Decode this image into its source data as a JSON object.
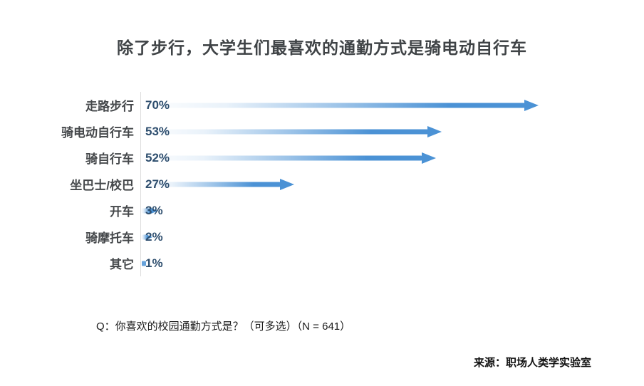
{
  "title": "除了步行，大学生们最喜欢的通勤方式是骑电动自行车",
  "question": "Q：你喜欢的校园通勤方式是？（可多选）（N = 641）",
  "source": "来源：职场人类学实验室",
  "colors": {
    "arrow_blue": "#4b92d5",
    "value_text": "#2e4e6e",
    "category_text": "#45484b",
    "axis_line": "#dcdcdc",
    "title_text": "#3f4346"
  },
  "chart_data": {
    "type": "bar",
    "orientation": "horizontal",
    "title": "除了步行，大学生们最喜欢的通勤方式是骑电动自行车",
    "categories": [
      "走路步行",
      "骑电动自行车",
      "骑自行车",
      "坐巴士/校巴",
      "开车",
      "骑摩托车",
      "其它"
    ],
    "values": [
      70,
      53,
      52,
      27,
      3,
      2,
      1
    ],
    "value_labels": [
      "70%",
      "53%",
      "52%",
      "27%",
      "3%",
      "2%",
      "1%"
    ],
    "unit": "percent",
    "xlabel": "",
    "ylabel": "",
    "xlim": [
      0,
      85
    ],
    "grid": false,
    "legend": "none",
    "annotation_n": "N = 641",
    "bar_style": "gradient-arrow"
  }
}
